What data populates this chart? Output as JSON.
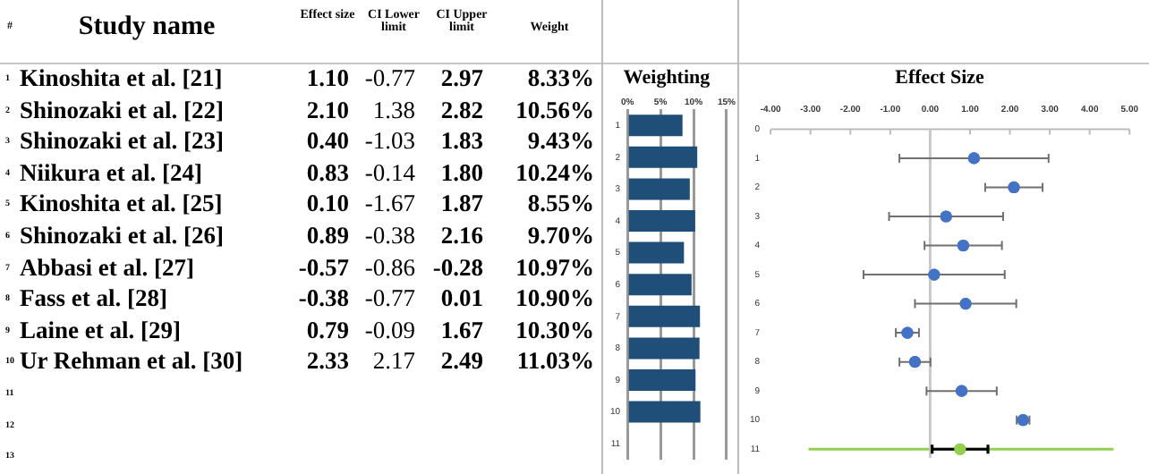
{
  "chart_data": [
    {
      "type": "heatmap",
      "ylabel": "Study name",
      "y2label": "#",
      "categories": [
        "Effect size",
        "CI Lower limit",
        "CI Upper limit",
        "Weight"
      ],
      "y_categories": [
        "Kinoshita et al. [21]",
        "Shinozaki et al. [22]",
        "Shinozaki et al. [23]",
        "Niikura et al. [24]",
        "Kinoshita et al. [25]",
        "Shinozaki et al. [26]",
        "Abbasi et al. [27]",
        "Fass et al. [28]",
        "Laine et al. [29]",
        "Ur Rehman et al. [30]"
      ],
      "y2_categories": [
        "1",
        "2",
        "3",
        "4",
        "5",
        "6",
        "7",
        "8",
        "9",
        "10"
      ],
      "cells": [
        [
          1.1,
          -0.77,
          2.97,
          8.33
        ],
        [
          2.1,
          1.38,
          2.82,
          10.56
        ],
        [
          0.4,
          -1.03,
          1.83,
          9.43
        ],
        [
          0.83,
          -0.14,
          1.8,
          10.24
        ],
        [
          0.1,
          -1.67,
          1.87,
          8.55
        ],
        [
          0.89,
          -0.38,
          2.16,
          9.7
        ],
        [
          -0.57,
          -0.86,
          -0.28,
          10.97
        ],
        [
          -0.38,
          -0.77,
          0.01,
          10.9
        ],
        [
          0.79,
          -0.09,
          1.67,
          10.3
        ],
        [
          2.33,
          2.17,
          2.49,
          11.03
        ]
      ],
      "cell_labels": [
        [
          "1.10",
          "-0.77",
          "2.97",
          "8.33%"
        ],
        [
          "2.10",
          "1.38",
          "2.82",
          "10.56%"
        ],
        [
          "0.40",
          "-1.03",
          "1.83",
          "9.43%"
        ],
        [
          "0.83",
          "-0.14",
          "1.80",
          "10.24%"
        ],
        [
          "0.10",
          "-1.67",
          "1.87",
          "8.55%"
        ],
        [
          "0.89",
          "-0.38",
          "2.16",
          "9.70%"
        ],
        [
          "-0.57",
          "-0.86",
          "-0.28",
          "10.97%"
        ],
        [
          "-0.38",
          "-0.77",
          "0.01",
          "10.90%"
        ],
        [
          "0.79",
          "-0.09",
          "1.67",
          "10.30%"
        ],
        [
          "2.33",
          "2.17",
          "2.49",
          "11.03%"
        ]
      ],
      "annotations": [
        "11",
        "12",
        "13"
      ]
    },
    {
      "type": "bar",
      "orientation": "horizontal",
      "title": "Weighting",
      "categories": [
        "1",
        "2",
        "3",
        "4",
        "5",
        "6",
        "7",
        "8",
        "9",
        "10",
        "11"
      ],
      "values": [
        8.33,
        10.56,
        9.43,
        10.24,
        8.55,
        9.7,
        10.97,
        10.9,
        10.3,
        11.03,
        null
      ],
      "color": "#1f4e79",
      "xlim": [
        0,
        15
      ],
      "xticks": [
        {
          "value": 0,
          "label": "0%"
        },
        {
          "value": 5,
          "label": "5%"
        },
        {
          "value": 10,
          "label": "10%"
        },
        {
          "value": 15,
          "label": "15%"
        }
      ],
      "grid": "x"
    },
    {
      "type": "scatter",
      "title": "Effect Size",
      "marker": "circle",
      "xlim": [
        -4,
        5
      ],
      "xticks": [
        {
          "value": -4,
          "label": "-4.00"
        },
        {
          "value": -3,
          "label": "-3.00"
        },
        {
          "value": -2,
          "label": "-2.00"
        },
        {
          "value": -1,
          "label": "-1.00"
        },
        {
          "value": 0,
          "label": "0.00"
        },
        {
          "value": 1,
          "label": "1.00"
        },
        {
          "value": 2,
          "label": "2.00"
        },
        {
          "value": 3,
          "label": "3.00"
        },
        {
          "value": 4,
          "label": "4.00"
        },
        {
          "value": 5,
          "label": "5.00"
        }
      ],
      "ylim": [
        11.3,
        0
      ],
      "yticks": [
        0,
        1,
        2,
        3,
        4,
        5,
        6,
        7,
        8,
        9,
        10,
        11
      ],
      "ref_lines": [
        {
          "axis": "x",
          "value": 0,
          "color": "#c8c8c8"
        }
      ],
      "series": [
        {
          "color": "#4472c4",
          "x": [
            1.1,
            2.1,
            0.4,
            0.83,
            0.1,
            0.89,
            -0.57,
            -0.38,
            0.79,
            2.33
          ],
          "values": [
            1,
            2,
            3,
            4,
            5,
            6,
            7,
            8,
            9,
            10
          ],
          "xerrors": [
            [
              -0.77,
              2.97
            ],
            [
              1.38,
              2.82
            ],
            [
              -1.03,
              1.83
            ],
            [
              -0.14,
              1.8
            ],
            [
              -1.67,
              1.87
            ],
            [
              -0.38,
              2.16
            ],
            [
              -0.86,
              -0.28
            ],
            [
              -0.77,
              0.01
            ],
            [
              -0.09,
              1.67
            ],
            [
              2.17,
              2.49
            ]
          ]
        },
        {
          "type": "line",
          "marker": "none",
          "color": "#92d050",
          "x": [
            -3.05,
            4.6
          ],
          "values": [
            11,
            11
          ]
        },
        {
          "color": "#92d050",
          "x": [
            0.75
          ],
          "values": [
            11
          ],
          "xerrors": [
            [
              0.05,
              1.45
            ]
          ]
        }
      ]
    }
  ]
}
